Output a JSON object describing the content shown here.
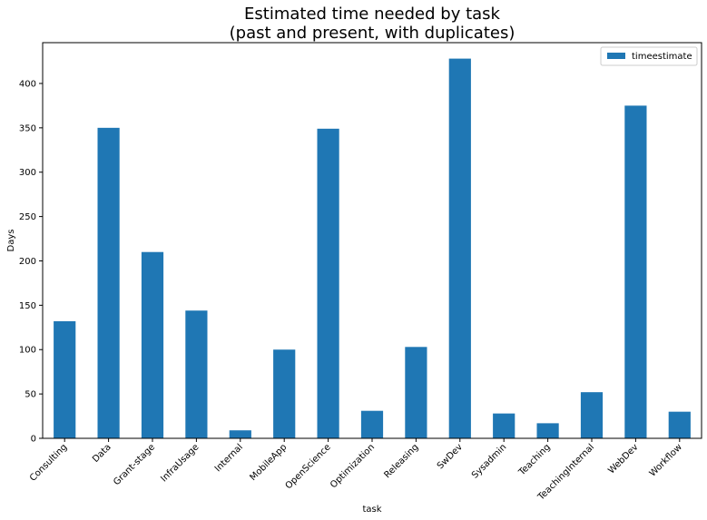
{
  "chart_data": {
    "type": "bar",
    "title": "Estimated time needed by task",
    "subtitle": "(past and present, with duplicates)",
    "xlabel": "task",
    "ylabel": "Days",
    "categories": [
      "Consulting",
      "Data",
      "Grant-stage",
      "InfraUsage",
      "Internal",
      "MobileApp",
      "OpenScience",
      "Optimization",
      "Releasing",
      "SwDev",
      "Sysadmin",
      "Teaching",
      "TeachingInternal",
      "WebDev",
      "Workflow"
    ],
    "series": [
      {
        "name": "timeestimate",
        "values": [
          132,
          350,
          210,
          144,
          9,
          100,
          349,
          31,
          103,
          428,
          28,
          17,
          52,
          375,
          30
        ]
      }
    ],
    "ylim": [
      0,
      446
    ],
    "yticks": [
      0,
      50,
      100,
      150,
      200,
      250,
      300,
      350,
      400
    ],
    "grid": false,
    "legend_position": "top-right",
    "bar_color": "#1f77b4"
  }
}
